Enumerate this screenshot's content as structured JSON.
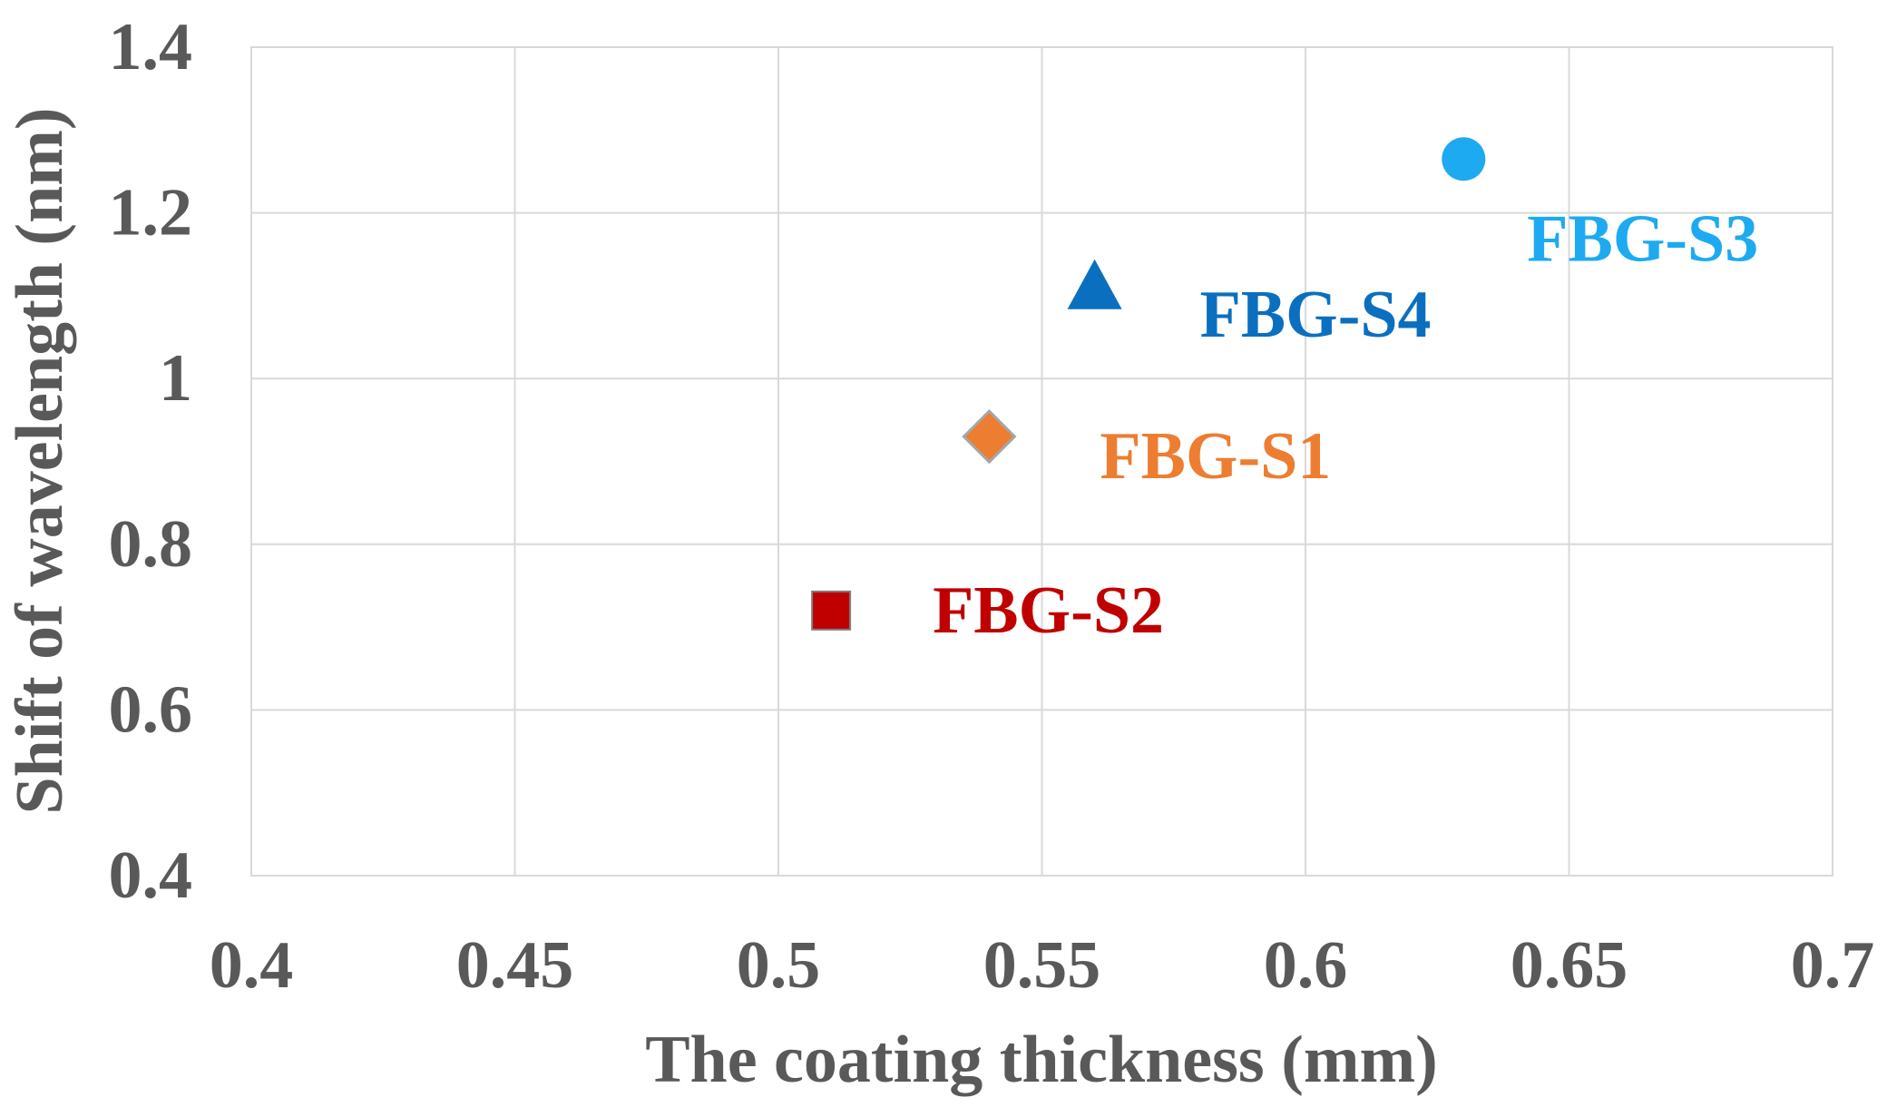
{
  "chart_data": {
    "type": "scatter",
    "title": "",
    "xlabel": "The coating thickness (mm)",
    "ylabel": "Shift of wavelength (nm)",
    "xlim": [
      0.4,
      0.7
    ],
    "ylim": [
      0.4,
      1.4
    ],
    "x_ticks": [
      0.4,
      0.45,
      0.5,
      0.55,
      0.6,
      0.65,
      0.7
    ],
    "x_tick_labels": [
      "0.4",
      "0.45",
      "0.5",
      "0.55",
      "0.6",
      "0.65",
      "0.7"
    ],
    "y_ticks": [
      0.4,
      0.6,
      0.8,
      1.0,
      1.2,
      1.4
    ],
    "y_tick_labels": [
      "0.4",
      "0.6",
      "0.8",
      "1",
      "1.2",
      "1.4"
    ],
    "grid": true,
    "legend": "none",
    "series": [
      {
        "name": "FBG-S1",
        "x": 0.54,
        "y": 0.93,
        "marker": "diamond",
        "color": "#ed7d31",
        "label_color": "#ed7d31"
      },
      {
        "name": "FBG-S2",
        "x": 0.51,
        "y": 0.72,
        "marker": "square",
        "color": "#c00000",
        "label_color": "#c00000"
      },
      {
        "name": "FBG-S3",
        "x": 0.63,
        "y": 1.265,
        "marker": "circle",
        "color": "#1eaaf0",
        "label_color": "#1eaaf0"
      },
      {
        "name": "FBG-S4",
        "x": 0.56,
        "y": 1.11,
        "marker": "triangle",
        "color": "#0b6fbf",
        "label_color": "#0b6fbf"
      }
    ]
  }
}
